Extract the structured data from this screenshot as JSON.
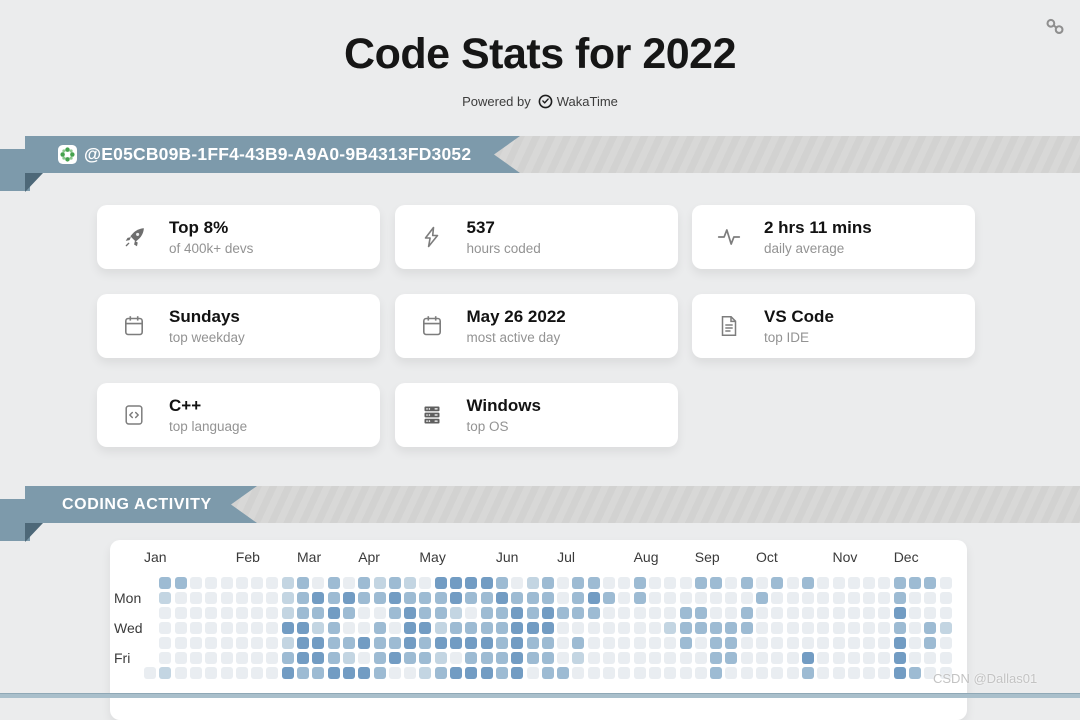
{
  "header": {
    "title": "Code Stats for 2022",
    "powered_by": "Powered by",
    "brand": "WakaTime"
  },
  "user_banner": {
    "label": "@E05CB09B-1FF4-43B9-A9A0-9B4313FD3052"
  },
  "cards": [
    {
      "icon": "rocket-icon",
      "title": "Top 8%",
      "subtitle": "of 400k+ devs"
    },
    {
      "icon": "bolt-icon",
      "title": "537",
      "subtitle": "hours coded"
    },
    {
      "icon": "pulse-icon",
      "title": "2 hrs 11 mins",
      "subtitle": "daily average"
    },
    {
      "icon": "calendar-icon",
      "title": "Sundays",
      "subtitle": "top weekday"
    },
    {
      "icon": "calendar-icon",
      "title": "May 26 2022",
      "subtitle": "most active day"
    },
    {
      "icon": "document-icon",
      "title": "VS Code",
      "subtitle": "top IDE"
    },
    {
      "icon": "code-file-icon",
      "title": "C++",
      "subtitle": "top language"
    },
    {
      "icon": "server-icon",
      "title": "Windows",
      "subtitle": "top OS"
    }
  ],
  "activity_section": {
    "title": "CODING ACTIVITY"
  },
  "chart_data": {
    "type": "heatmap",
    "title": "CODING ACTIVITY",
    "x_unit": "weeks of 2022, 53 columns, column 1 = Jan 1 (Saturday only)",
    "y_order": [
      "Sun",
      "Mon",
      "Tue",
      "Wed",
      "Thu",
      "Fri",
      "Sat"
    ],
    "visible_y_labels": [
      "Mon",
      "Wed",
      "Fri"
    ],
    "day_label_rows": [
      2,
      4,
      6
    ],
    "months": [
      "Jan",
      "Feb",
      "Mar",
      "Apr",
      "May",
      "Jun",
      "Jul",
      "Aug",
      "Sep",
      "Oct",
      "Nov",
      "Dec"
    ],
    "month_start_columns": [
      1,
      7,
      11,
      15,
      19,
      24,
      28,
      33,
      37,
      41,
      46,
      50
    ],
    "legend_note": "intensity levels 0 (none) to 3 (most coding); '.' = no cell",
    "level_colors": {
      "0": "#e9edf1",
      "1": "#c3d5e2",
      "2": "#9dbbd3",
      "3": "#729cc3"
    },
    "rows": [
      {
        "day": "Sun",
        "cells": ".2200000012020212103333201202200200022020202000002220"
      },
      {
        "day": "Mon",
        "cells": ".1000000012323223222322322202320200000002000000002000"
      },
      {
        "day": "Tue",
        "cells": ".0000000012232002322102232322200000220020000000003000"
      },
      {
        "day": "Wed",
        "cells": ".0000000033120020331222233300000001222220000000002021"
      },
      {
        "day": "Thu",
        "cells": ".0000000013322322323333232202000000202200000000003020"
      },
      {
        "day": "Fri",
        "cells": ".0000000023321023221022232201000000002200003000003000"
      },
      {
        "day": "Sat",
        "cells": "01000000032233320012333230220000000002000002000003200"
      }
    ]
  },
  "watermark": "CSDN @Dallas01",
  "colors": {
    "background": "#ebeced",
    "ribbon": "#7d9aab",
    "ribbon_fold": "#4d6878",
    "ribbon_strip": "#d5d5d4",
    "card_bg": "#ffffff",
    "bottom_bar": "#a9bfcb"
  }
}
